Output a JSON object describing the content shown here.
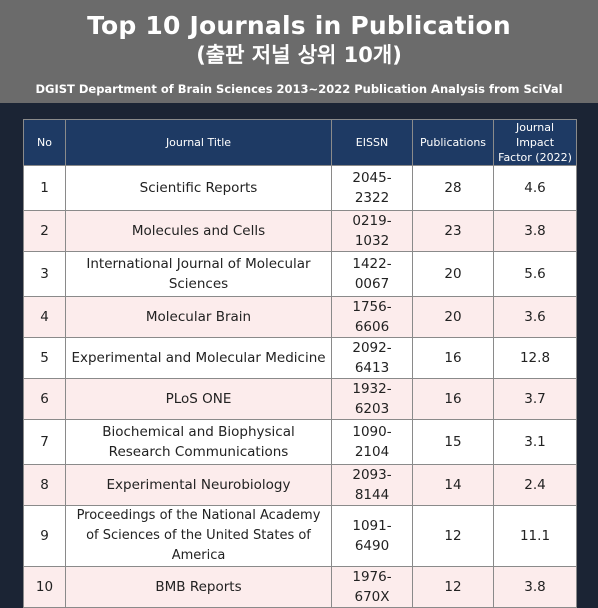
{
  "header": {
    "title": "Top 10 Journals in Publication",
    "subtitle": "(출판 저널 상위 10개)",
    "source": "DGIST Department of Brain Sciences 2013~2022 Publication Analysis from SciVal"
  },
  "table": {
    "columns": {
      "no": "No",
      "title": "Journal Title",
      "eissn": "EISSN",
      "publications": "Publications",
      "impact_line1": "Journal Impact",
      "impact_line2": "Factor (2022)"
    },
    "rows": [
      {
        "no": "1",
        "title": "Scientific Reports",
        "eissn": "2045-2322",
        "publications": "28",
        "impact": "4.6"
      },
      {
        "no": "2",
        "title": "Molecules and Cells",
        "eissn": "0219-1032",
        "publications": "23",
        "impact": "3.8"
      },
      {
        "no": "3",
        "title": "International Journal of Molecular Sciences",
        "eissn": "1422-0067",
        "publications": "20",
        "impact": "5.6"
      },
      {
        "no": "4",
        "title": "Molecular Brain",
        "eissn": "1756-6606",
        "publications": "20",
        "impact": "3.6"
      },
      {
        "no": "5",
        "title": "Experimental and Molecular Medicine",
        "eissn": "2092-6413",
        "publications": "16",
        "impact": "12.8"
      },
      {
        "no": "6",
        "title": "PLoS ONE",
        "eissn": "1932-6203",
        "publications": "16",
        "impact": "3.7"
      },
      {
        "no": "7",
        "title": "Biochemical and Biophysical Research Communications",
        "eissn": "1090-2104",
        "publications": "15",
        "impact": "3.1"
      },
      {
        "no": "8",
        "title": "Experimental Neurobiology",
        "eissn": "2093-8144",
        "publications": "14",
        "impact": "2.4"
      },
      {
        "no": "9",
        "title": "Proceedings of the National Academy of Sciences of the United States of America",
        "eissn": "1091-6490",
        "publications": "12",
        "impact": "11.1"
      },
      {
        "no": "10",
        "title": "BMB Reports",
        "eissn": "1976-670X",
        "publications": "12",
        "impact": "3.8"
      }
    ]
  },
  "colors": {
    "header_bg": "#6b6b6b",
    "table_header_bg": "#1e3a64",
    "row_alt_bg": "#fcecec",
    "page_bg": "#1b2434"
  }
}
